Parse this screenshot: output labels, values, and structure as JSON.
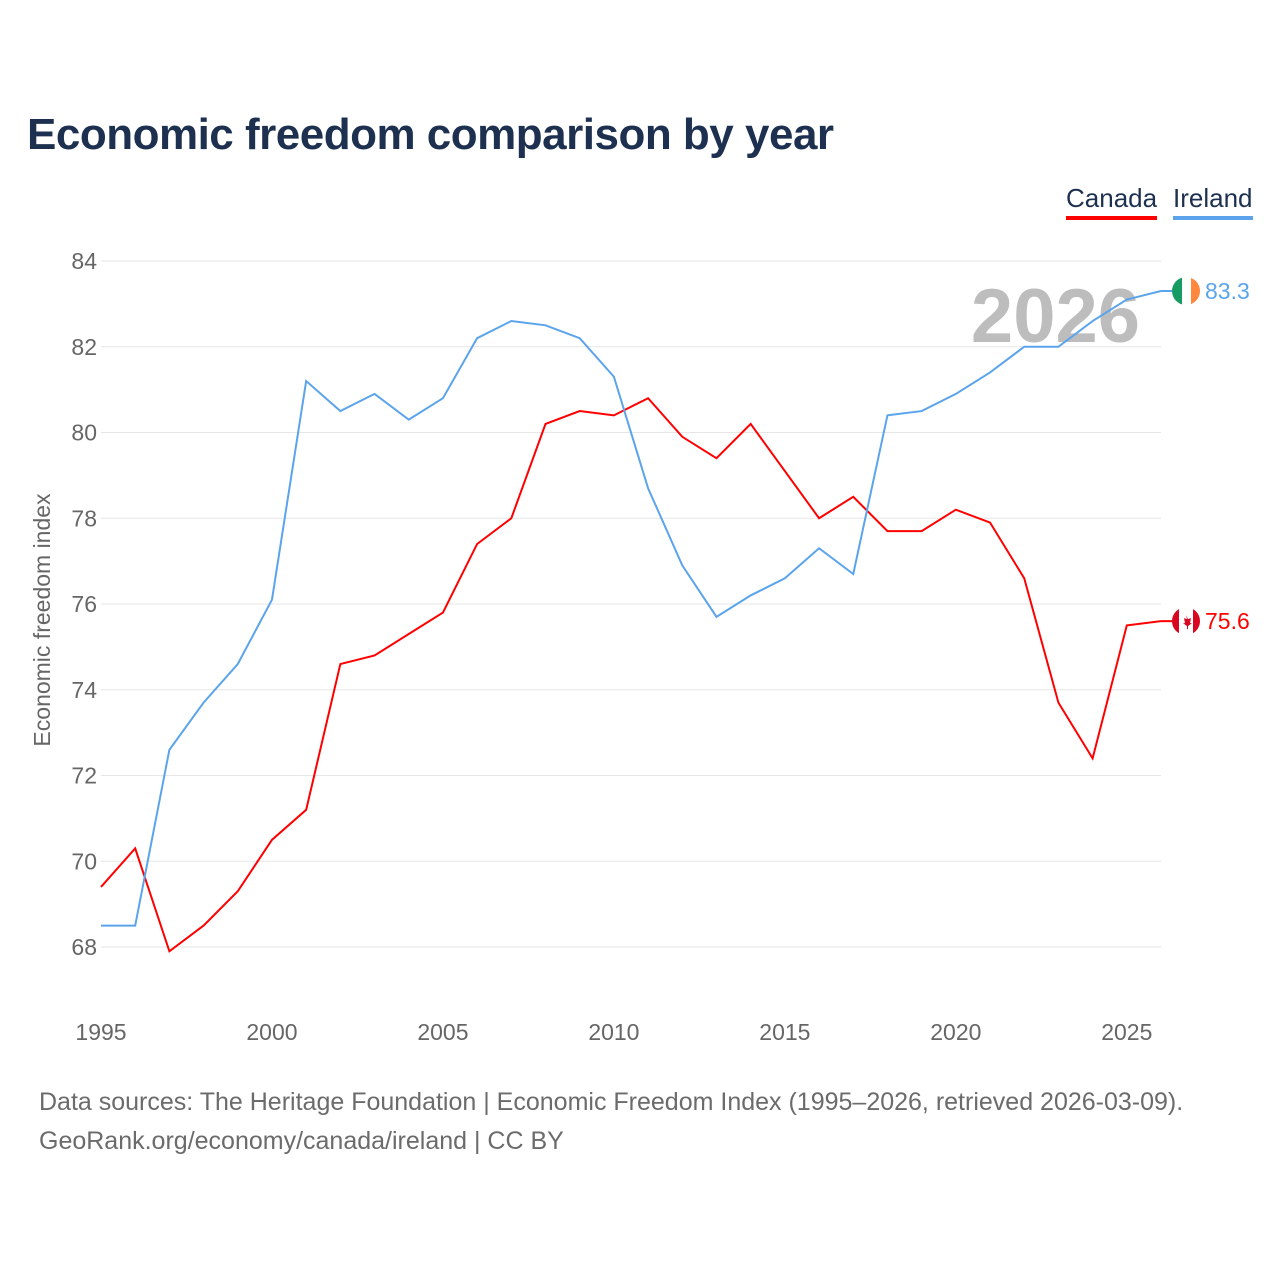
{
  "title": "Economic freedom comparison by year",
  "legend": {
    "canada": "Canada",
    "ireland": "Ireland"
  },
  "year_watermark": "2026",
  "footer": {
    "line1": "Data sources: The Heritage Foundation | Economic Freedom Index (1995–2026, retrieved 2026-03-09).",
    "line2": "GeoRank.org/economy/canada/ireland | CC BY"
  },
  "chart_data": {
    "type": "line",
    "title": "Economic freedom comparison by year",
    "xlabel": "",
    "ylabel": "Economic freedom index",
    "xlim": [
      1995,
      2026
    ],
    "ylim": [
      68,
      84
    ],
    "yticks": [
      "68",
      "70",
      "72",
      "74",
      "76",
      "78",
      "80",
      "82",
      "84"
    ],
    "xticks": [
      "1995",
      "2000",
      "2005",
      "2010",
      "2015",
      "2020",
      "2025"
    ],
    "grid": true,
    "legend_position": "top-right",
    "x": [
      1995,
      1996,
      1997,
      1998,
      1999,
      2000,
      2001,
      2002,
      2003,
      2004,
      2005,
      2006,
      2007,
      2008,
      2009,
      2010,
      2011,
      2012,
      2013,
      2014,
      2015,
      2016,
      2017,
      2018,
      2019,
      2020,
      2021,
      2022,
      2023,
      2024,
      2025,
      2026
    ],
    "series": [
      {
        "name": "Canada",
        "color": "#ff0000",
        "end_label": "75.6",
        "values": [
          69.4,
          70.3,
          67.9,
          68.5,
          69.3,
          70.5,
          71.2,
          74.6,
          74.8,
          75.3,
          75.8,
          77.4,
          78.0,
          80.2,
          80.5,
          80.4,
          80.8,
          79.9,
          79.4,
          80.2,
          79.1,
          78.0,
          78.5,
          77.7,
          77.7,
          78.2,
          77.9,
          76.6,
          73.7,
          72.4,
          75.5,
          75.6
        ]
      },
      {
        "name": "Ireland",
        "color": "#5ba4ec",
        "end_label": "83.3",
        "values": [
          68.5,
          68.5,
          72.6,
          73.7,
          74.6,
          76.1,
          81.2,
          80.5,
          80.9,
          80.3,
          80.8,
          82.2,
          82.6,
          82.5,
          82.2,
          81.3,
          78.7,
          76.9,
          75.7,
          76.2,
          76.6,
          77.3,
          76.7,
          80.4,
          80.5,
          80.9,
          81.4,
          82.0,
          82.0,
          82.6,
          83.1,
          83.3
        ]
      }
    ]
  }
}
